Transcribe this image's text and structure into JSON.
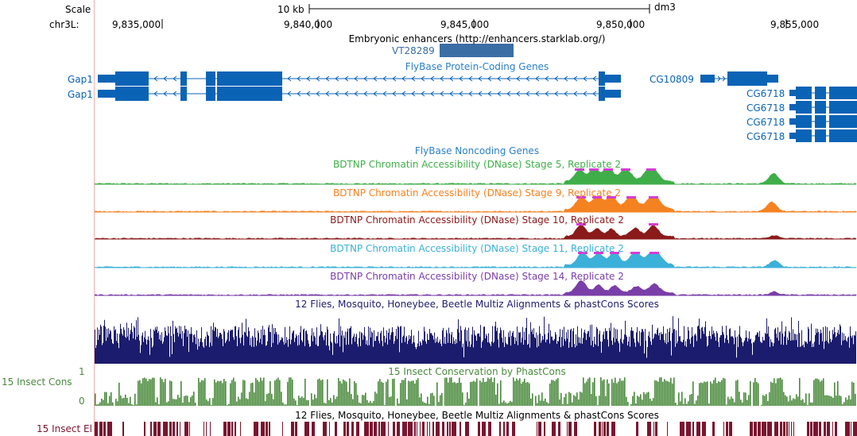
{
  "ruler": {
    "scale_label": "Scale",
    "chrom_label": "chr3L:",
    "scalebar_label": "10 kb",
    "assembly": "dm3",
    "positions": [
      "9,835,000",
      "9,840,000",
      "9,845,000",
      "9,850,000",
      "9,855,000"
    ]
  },
  "tracks": {
    "enhancers": {
      "title": "Embryonic enhancers (http://enhancers.starklab.org/)",
      "item": "VT28289",
      "color": "#3a6ea5"
    },
    "coding": {
      "title": "FlyBase Protein-Coding Genes",
      "genes": [
        {
          "label": "Gap1"
        },
        {
          "label": "Gap1"
        },
        {
          "label": "CG10809"
        },
        {
          "label": "CG6718"
        },
        {
          "label": "CG6718"
        },
        {
          "label": "CG6718"
        },
        {
          "label": "CG6718"
        }
      ],
      "color": "#0b63b6"
    },
    "noncoding": {
      "title": "FlyBase Noncoding Genes",
      "color": "#2a7fc9"
    },
    "dnase": [
      {
        "title": "BDTNP Chromatin Accessibility (DNase) Stage 5, Replicate 2",
        "color": "#3fae49"
      },
      {
        "title": "BDTNP Chromatin Accessibility (DNase) Stage 9, Replicate 2",
        "color": "#f58220"
      },
      {
        "title": "BDTNP Chromatin Accessibility (DNase) Stage 10, Replicate 2",
        "color": "#8b1a1a"
      },
      {
        "title": "BDTNP Chromatin Accessibility (DNase) Stage 11, Replicate 2",
        "color": "#3bb0d9"
      },
      {
        "title": "BDTNP Chromatin Accessibility (DNase) Stage 14, Replicate 2",
        "color": "#7a3ea8"
      }
    ],
    "multiz": {
      "title": "12 Flies, Mosquito, Honeybee, Beetle Multiz Alignments & phastCons Scores",
      "color": "#1c1c6e"
    },
    "phastcons": {
      "title": "15 Insect Conservation by PhastCons",
      "label": "15 Insect Cons",
      "ymax": "1",
      "ymin": "0",
      "color": "#4a8a3c"
    },
    "elements": {
      "title": "12 Flies, Mosquito, Honeybee, Beetle Multiz Alignments & phastCons Scores",
      "label": "15 Insect El",
      "color": "#7a1530"
    }
  }
}
